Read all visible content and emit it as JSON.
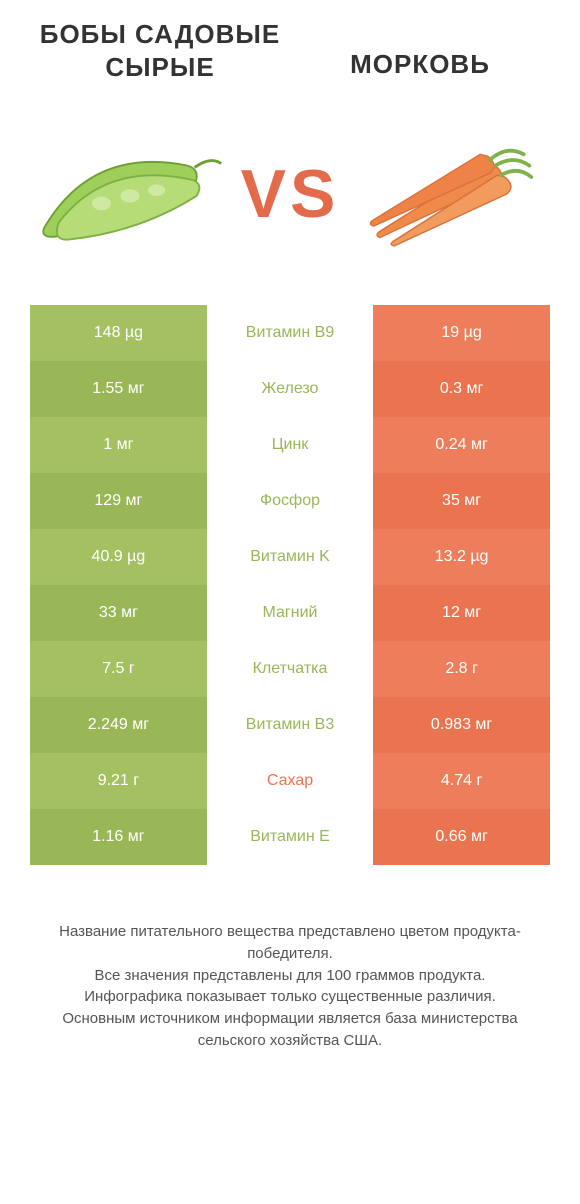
{
  "colors": {
    "left1": "#a4c061",
    "left2": "#9ab757",
    "right1": "#ee7e5b",
    "right2": "#eb7450",
    "mid_left": "#9ab757",
    "mid_right": "#eb7450",
    "vs": "#e36b4b",
    "text": "#333333",
    "foot": "#555555"
  },
  "titles": {
    "left": "БОБЫ САДОВЫЕ СЫРЫЕ",
    "right": "МОРКОВЬ"
  },
  "vs": "VS",
  "rows": [
    {
      "left": "148 µg",
      "mid": "Витамин B9",
      "right": "19 µg",
      "winner": "left"
    },
    {
      "left": "1.55 мг",
      "mid": "Железо",
      "right": "0.3 мг",
      "winner": "left"
    },
    {
      "left": "1 мг",
      "mid": "Цинк",
      "right": "0.24 мг",
      "winner": "left"
    },
    {
      "left": "129 мг",
      "mid": "Фосфор",
      "right": "35 мг",
      "winner": "left"
    },
    {
      "left": "40.9 µg",
      "mid": "Витамин K",
      "right": "13.2 µg",
      "winner": "left"
    },
    {
      "left": "33 мг",
      "mid": "Магний",
      "right": "12 мг",
      "winner": "left"
    },
    {
      "left": "7.5 г",
      "mid": "Клетчатка",
      "right": "2.8 г",
      "winner": "left"
    },
    {
      "left": "2.249 мг",
      "mid": "Витамин B3",
      "right": "0.983 мг",
      "winner": "left"
    },
    {
      "left": "9.21 г",
      "mid": "Сахар",
      "right": "4.74 г",
      "winner": "right"
    },
    {
      "left": "1.16 мг",
      "mid": "Витамин E",
      "right": "0.66 мг",
      "winner": "left"
    }
  ],
  "footer": [
    "Название питательного вещества представлено цветом продукта-победителя.",
    "Все значения представлены для 100 граммов продукта.",
    "Инфографика показывает только существенные различия.",
    "Основным источником информации является база министерства сельского хозяйства США."
  ]
}
